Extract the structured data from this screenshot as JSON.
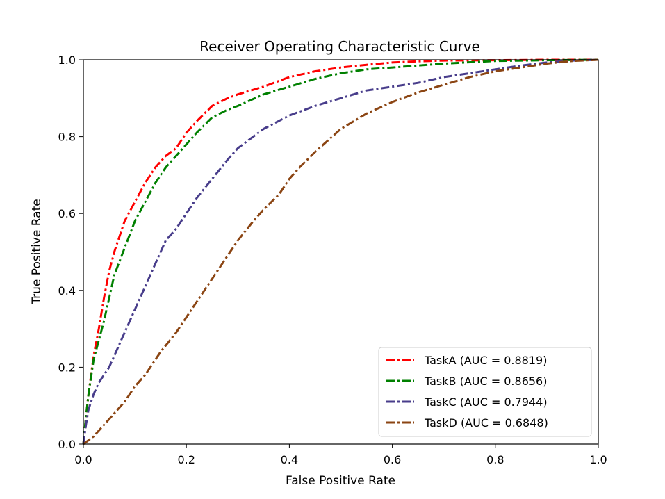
{
  "chart_data": {
    "type": "line",
    "title": "Receiver Operating Characteristic Curve",
    "xlabel": "False Positive Rate",
    "ylabel": "True Positive Rate",
    "xlim": [
      0.0,
      1.0
    ],
    "ylim": [
      0.0,
      1.0
    ],
    "xticks": [
      "0.0",
      "0.2",
      "0.4",
      "0.6",
      "0.8",
      "1.0"
    ],
    "yticks": [
      "0.0",
      "0.2",
      "0.4",
      "0.6",
      "0.8",
      "1.0"
    ],
    "grid": false,
    "legend_position": "lower-right",
    "series": [
      {
        "name": "TaskA (AUC = 0.8819)",
        "color": "#ff0000",
        "x": [
          0.0,
          0.005,
          0.01,
          0.02,
          0.03,
          0.04,
          0.05,
          0.06,
          0.08,
          0.1,
          0.12,
          0.14,
          0.16,
          0.18,
          0.2,
          0.22,
          0.25,
          0.28,
          0.3,
          0.35,
          0.4,
          0.45,
          0.5,
          0.55,
          0.6,
          0.65,
          0.7,
          0.8,
          0.9,
          1.0
        ],
        "y": [
          0.0,
          0.07,
          0.13,
          0.23,
          0.3,
          0.38,
          0.45,
          0.5,
          0.58,
          0.63,
          0.68,
          0.72,
          0.75,
          0.77,
          0.81,
          0.84,
          0.88,
          0.9,
          0.91,
          0.93,
          0.955,
          0.97,
          0.98,
          0.987,
          0.993,
          0.996,
          0.998,
          0.999,
          1.0,
          1.0
        ]
      },
      {
        "name": "TaskB (AUC = 0.8656)",
        "color": "#008000",
        "x": [
          0.0,
          0.005,
          0.01,
          0.02,
          0.03,
          0.04,
          0.05,
          0.06,
          0.08,
          0.1,
          0.12,
          0.14,
          0.16,
          0.18,
          0.2,
          0.22,
          0.25,
          0.28,
          0.3,
          0.35,
          0.4,
          0.45,
          0.5,
          0.55,
          0.6,
          0.65,
          0.7,
          0.8,
          0.9,
          1.0
        ],
        "y": [
          0.0,
          0.07,
          0.13,
          0.22,
          0.27,
          0.32,
          0.38,
          0.44,
          0.51,
          0.58,
          0.63,
          0.68,
          0.72,
          0.75,
          0.78,
          0.81,
          0.85,
          0.87,
          0.88,
          0.91,
          0.93,
          0.95,
          0.965,
          0.975,
          0.98,
          0.985,
          0.99,
          0.997,
          0.999,
          1.0
        ]
      },
      {
        "name": "TaskC (AUC = 0.7944)",
        "color": "#483d8b",
        "x": [
          0.0,
          0.005,
          0.01,
          0.02,
          0.03,
          0.04,
          0.05,
          0.06,
          0.08,
          0.1,
          0.12,
          0.14,
          0.16,
          0.18,
          0.2,
          0.22,
          0.25,
          0.28,
          0.3,
          0.35,
          0.4,
          0.45,
          0.5,
          0.55,
          0.6,
          0.65,
          0.7,
          0.75,
          0.8,
          0.85,
          0.9,
          0.95,
          1.0
        ],
        "y": [
          0.0,
          0.05,
          0.09,
          0.13,
          0.16,
          0.18,
          0.2,
          0.23,
          0.29,
          0.35,
          0.41,
          0.47,
          0.53,
          0.56,
          0.6,
          0.64,
          0.69,
          0.74,
          0.77,
          0.82,
          0.855,
          0.88,
          0.9,
          0.92,
          0.93,
          0.94,
          0.955,
          0.965,
          0.975,
          0.985,
          0.993,
          0.998,
          1.0
        ]
      },
      {
        "name": "TaskD (AUC = 0.6848)",
        "color": "#8b4513",
        "x": [
          0.0,
          0.01,
          0.02,
          0.03,
          0.05,
          0.08,
          0.1,
          0.12,
          0.15,
          0.18,
          0.2,
          0.22,
          0.25,
          0.28,
          0.3,
          0.33,
          0.35,
          0.38,
          0.4,
          0.42,
          0.45,
          0.5,
          0.55,
          0.6,
          0.65,
          0.7,
          0.75,
          0.8,
          0.85,
          0.9,
          0.95,
          1.0
        ],
        "y": [
          0.0,
          0.01,
          0.02,
          0.035,
          0.065,
          0.11,
          0.15,
          0.18,
          0.24,
          0.29,
          0.33,
          0.37,
          0.43,
          0.49,
          0.53,
          0.58,
          0.61,
          0.65,
          0.69,
          0.72,
          0.76,
          0.82,
          0.86,
          0.89,
          0.915,
          0.935,
          0.955,
          0.97,
          0.98,
          0.99,
          0.997,
          1.0
        ]
      }
    ]
  }
}
